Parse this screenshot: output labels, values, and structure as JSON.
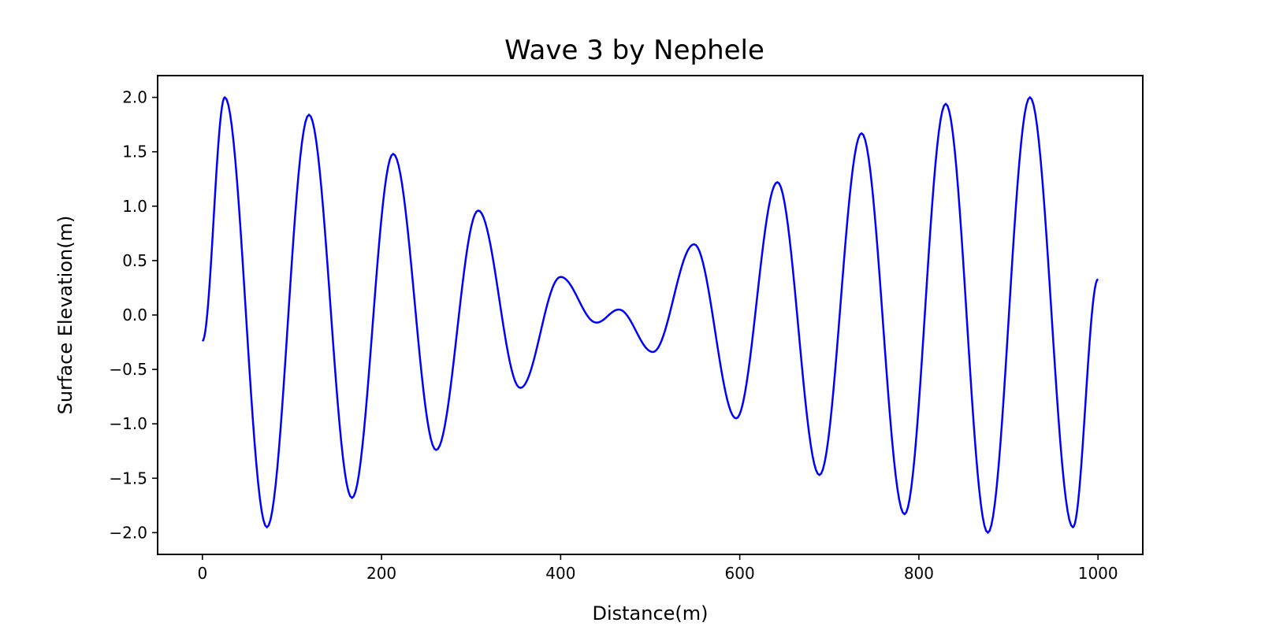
{
  "chart_data": {
    "type": "line",
    "title": "Wave 3 by Nephele",
    "xlabel": "Distance(m)",
    "ylabel": "Surface Elevation(m)",
    "xlim": [
      -50,
      1050
    ],
    "ylim": [
      -2.2,
      2.2
    ],
    "grid": false,
    "line_color": "#0000ff",
    "x_ticks": [
      0,
      200,
      400,
      600,
      800,
      1000
    ],
    "x_tick_labels": [
      "0",
      "200",
      "400",
      "600",
      "800",
      "1000"
    ],
    "y_ticks": [
      -2.0,
      -1.5,
      -1.0,
      -0.5,
      0.0,
      0.5,
      1.0,
      1.5,
      2.0
    ],
    "y_tick_labels": [
      "−2.0",
      "−1.5",
      "−1.0",
      "−0.5",
      "0.0",
      "0.5",
      "1.0",
      "1.5",
      "2.0"
    ],
    "series": [
      {
        "name": "wave",
        "x": [
          0,
          25,
          72,
          119,
          167,
          213,
          261,
          308,
          355,
          400,
          440,
          465,
          503,
          549,
          596,
          642,
          689,
          736,
          784,
          830,
          877,
          924,
          972,
          1000
        ],
        "y": [
          -0.24,
          2.0,
          -1.95,
          1.84,
          -1.68,
          1.48,
          -1.24,
          0.96,
          -0.67,
          0.35,
          -0.07,
          0.05,
          -0.34,
          0.65,
          -0.95,
          1.22,
          -1.47,
          1.67,
          -1.83,
          1.94,
          -2.0,
          2.0,
          -1.95,
          0.33
        ]
      }
    ]
  }
}
